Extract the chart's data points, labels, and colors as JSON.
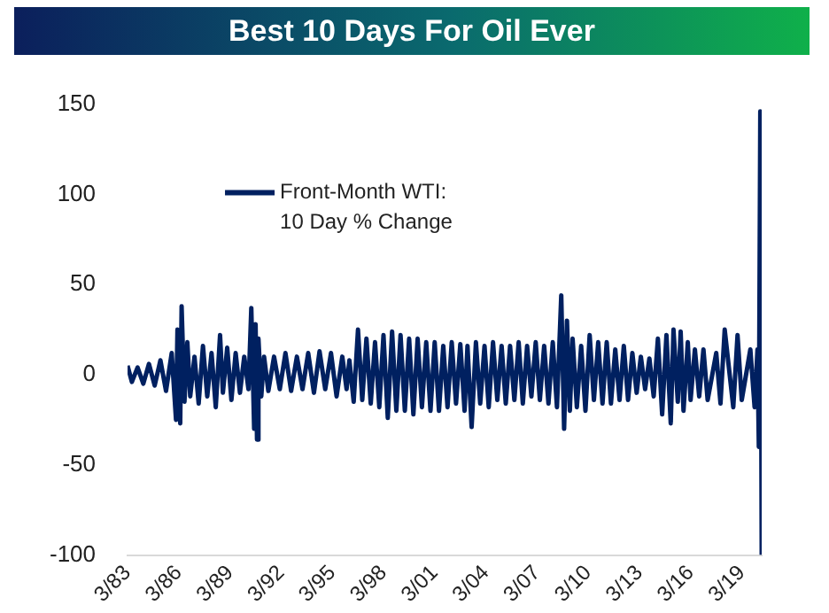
{
  "chart_data": {
    "type": "line",
    "title": "Best 10 Days For Oil Ever",
    "x": [
      "1983-03",
      "1983-06",
      "1983-10",
      "1984-02",
      "1984-06",
      "1984-10",
      "1985-02",
      "1985-06",
      "1985-10",
      "1986-01",
      "1986-02",
      "1986-04",
      "1986-05",
      "1986-07",
      "1986-09",
      "1986-11",
      "1987-02",
      "1987-05",
      "1987-08",
      "1987-11",
      "1988-02",
      "1988-05",
      "1988-08",
      "1988-10",
      "1989-01",
      "1989-04",
      "1989-07",
      "1989-10",
      "1990-01",
      "1990-04",
      "1990-06",
      "1990-08",
      "1990-09",
      "1990-10",
      "1990-11",
      "1991-01",
      "1991-03",
      "1991-06",
      "1991-10",
      "1992-02",
      "1992-06",
      "1992-10",
      "1993-02",
      "1993-06",
      "1993-10",
      "1994-02",
      "1994-06",
      "1994-10",
      "1995-02",
      "1995-06",
      "1995-10",
      "1996-01",
      "1996-03",
      "1996-06",
      "1996-09",
      "1996-12",
      "1997-03",
      "1997-06",
      "1997-09",
      "1997-12",
      "1998-03",
      "1998-06",
      "1998-09",
      "1998-12",
      "1999-03",
      "1999-06",
      "1999-09",
      "1999-12",
      "2000-03",
      "2000-06",
      "2000-09",
      "2000-12",
      "2001-03",
      "2001-06",
      "2001-09",
      "2001-12",
      "2002-03",
      "2002-06",
      "2002-09",
      "2002-12",
      "2003-02",
      "2003-05",
      "2003-08",
      "2003-11",
      "2004-02",
      "2004-05",
      "2004-08",
      "2004-11",
      "2005-02",
      "2005-05",
      "2005-08",
      "2005-11",
      "2006-02",
      "2006-05",
      "2006-08",
      "2006-11",
      "2007-02",
      "2007-05",
      "2007-08",
      "2007-11",
      "2008-02",
      "2008-05",
      "2008-08",
      "2008-10",
      "2008-12",
      "2009-02",
      "2009-04",
      "2009-07",
      "2009-10",
      "2010-01",
      "2010-04",
      "2010-07",
      "2010-10",
      "2011-01",
      "2011-04",
      "2011-07",
      "2011-10",
      "2012-01",
      "2012-04",
      "2012-07",
      "2012-10",
      "2013-01",
      "2013-04",
      "2013-07",
      "2013-10",
      "2014-01",
      "2014-04",
      "2014-07",
      "2014-10",
      "2015-01",
      "2015-03",
      "2015-06",
      "2015-08",
      "2015-10",
      "2016-01",
      "2016-03",
      "2016-06",
      "2016-09",
      "2016-12",
      "2017-03",
      "2017-09",
      "2017-12",
      "2018-03",
      "2018-09",
      "2018-12",
      "2019-03",
      "2019-09",
      "2019-12",
      "2020-02",
      "2020-03",
      "2020-04",
      "2020-05"
    ],
    "series": [
      {
        "name": "Front-Month WTI: 10 Day % Change",
        "color": "#002060",
        "values": [
          5,
          -4,
          4,
          -5,
          6,
          -6,
          8,
          -9,
          12,
          -25,
          25,
          -27,
          38,
          -15,
          18,
          -12,
          10,
          -16,
          16,
          -12,
          12,
          -18,
          22,
          -10,
          15,
          -14,
          12,
          -10,
          10,
          -8,
          37,
          -30,
          28,
          -36,
          20,
          -12,
          10,
          -9,
          10,
          -8,
          12,
          -9,
          10,
          -8,
          12,
          -10,
          13,
          -8,
          12,
          -12,
          10,
          -8,
          8,
          -15,
          25,
          -14,
          20,
          -16,
          18,
          -18,
          22,
          -24,
          24,
          -20,
          22,
          -20,
          20,
          -22,
          20,
          -18,
          18,
          -20,
          18,
          -20,
          16,
          -18,
          18,
          -16,
          17,
          -20,
          16,
          -29,
          18,
          -16,
          16,
          -18,
          18,
          -14,
          16,
          -16,
          16,
          -14,
          18,
          -16,
          16,
          -12,
          18,
          -14,
          16,
          -16,
          18,
          -18,
          44,
          -30,
          30,
          -20,
          20,
          -18,
          16,
          -20,
          22,
          -14,
          18,
          -16,
          18,
          -16,
          14,
          -14,
          16,
          -14,
          12,
          -10,
          10,
          -8,
          9,
          -12,
          20,
          -22,
          22,
          -27,
          25,
          -15,
          24,
          -20,
          18,
          -14,
          14,
          -12,
          14,
          -14,
          12,
          -16,
          25,
          -18,
          22,
          -14,
          14,
          -18,
          14,
          -40,
          146,
          -100
        ]
      }
    ],
    "xticks": [
      {
        "value": "1983-03",
        "label": "3/83"
      },
      {
        "value": "1986-03",
        "label": "3/86"
      },
      {
        "value": "1989-03",
        "label": "3/89"
      },
      {
        "value": "1992-03",
        "label": "3/92"
      },
      {
        "value": "1995-03",
        "label": "3/95"
      },
      {
        "value": "1998-03",
        "label": "3/98"
      },
      {
        "value": "2001-03",
        "label": "3/01"
      },
      {
        "value": "2004-03",
        "label": "3/04"
      },
      {
        "value": "2007-03",
        "label": "3/07"
      },
      {
        "value": "2010-03",
        "label": "3/10"
      },
      {
        "value": "2013-03",
        "label": "3/13"
      },
      {
        "value": "2016-03",
        "label": "3/16"
      },
      {
        "value": "2019-03",
        "label": "3/19"
      }
    ],
    "xlim": [
      "1983-03",
      "2020-05"
    ],
    "ylim": [
      -100,
      150
    ],
    "yticks": [
      -100,
      -50,
      0,
      50,
      100,
      150
    ],
    "grid": false,
    "legend": "top left",
    "marker": "none",
    "line_style": "solid"
  }
}
